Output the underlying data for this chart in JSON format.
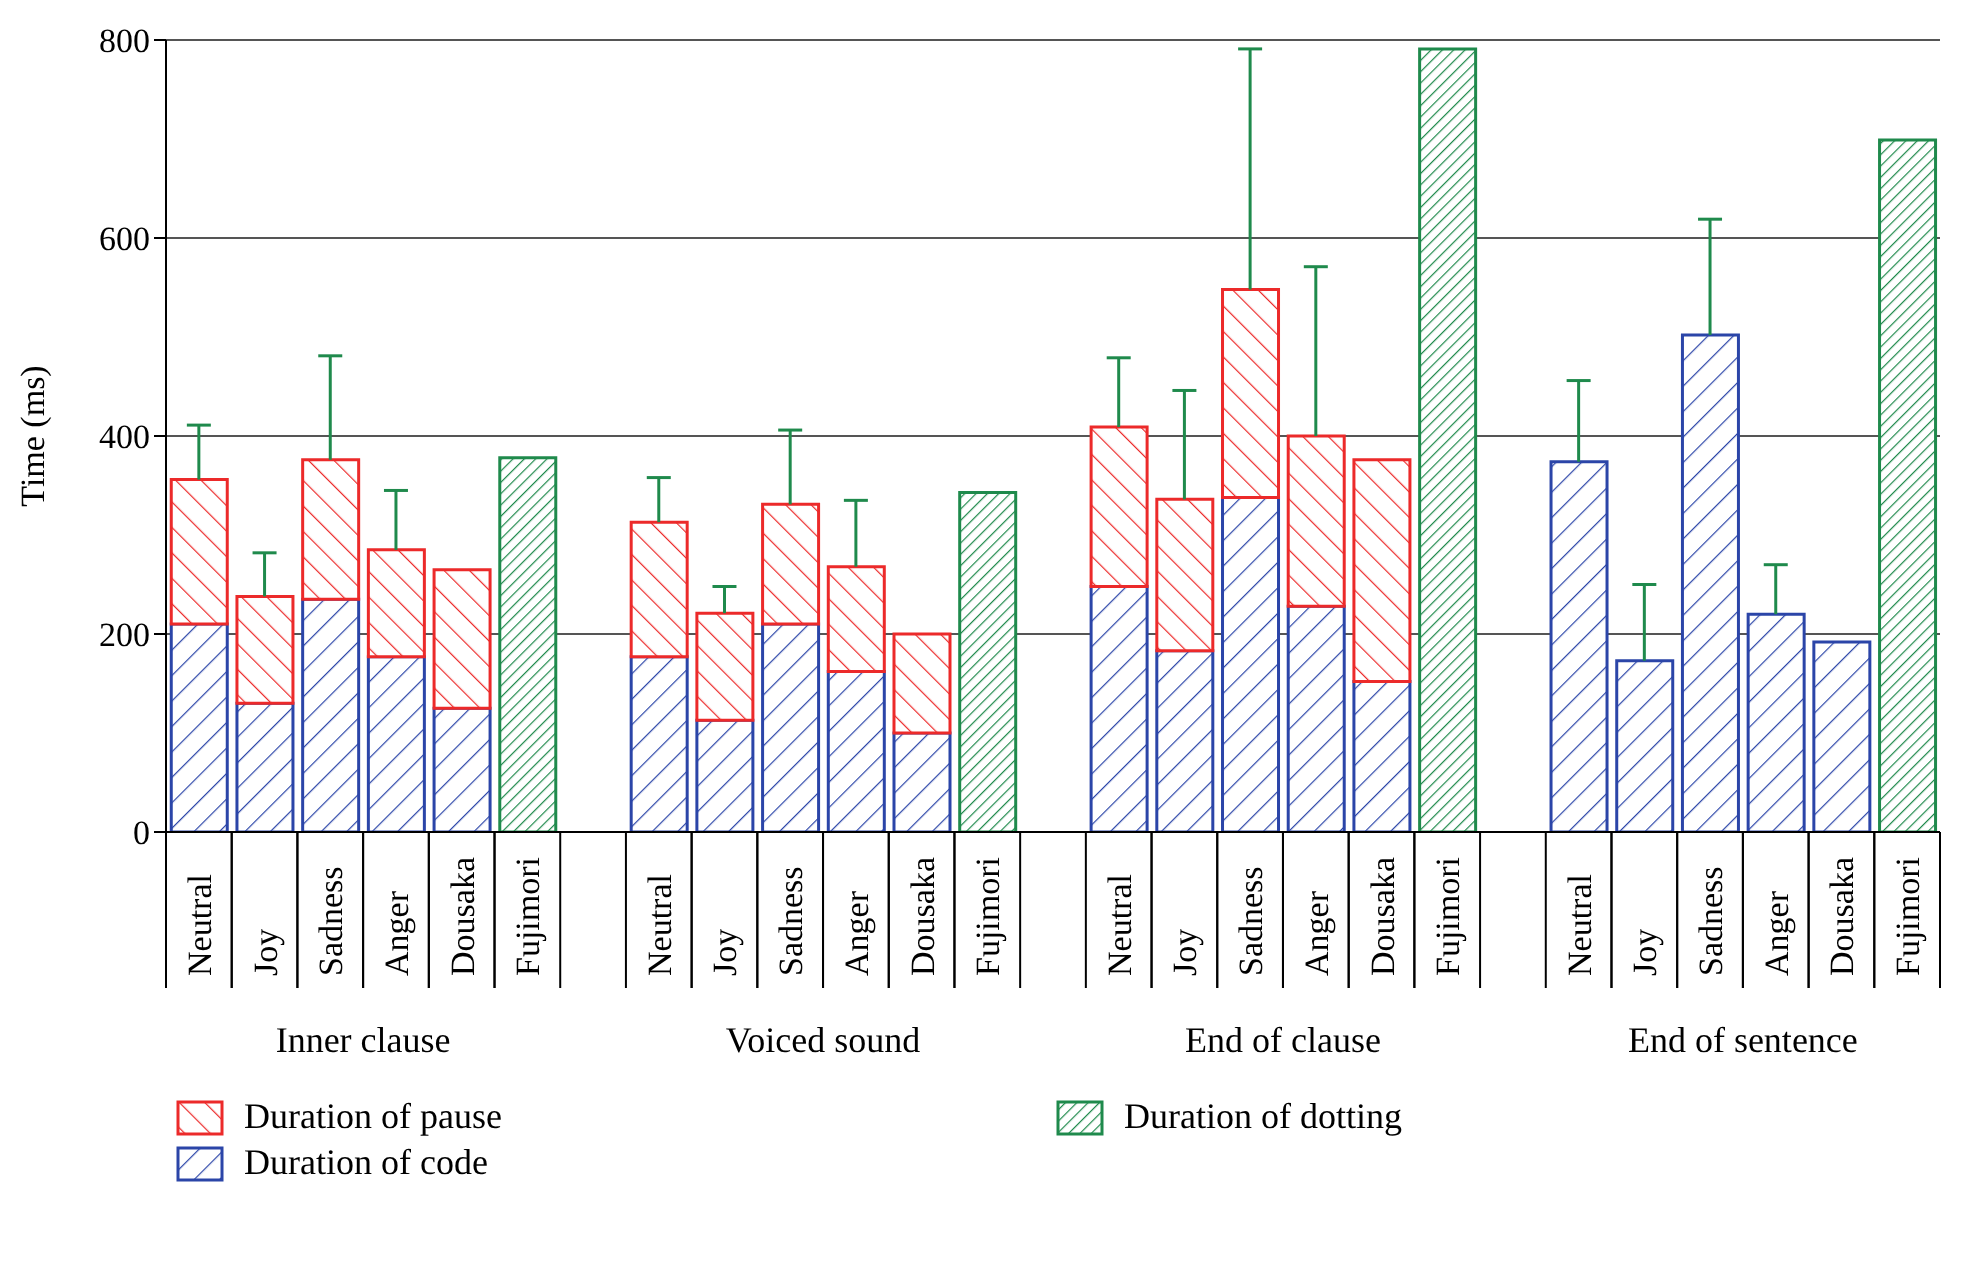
{
  "chart_data": {
    "type": "bar",
    "stacked": true,
    "categories": [
      "Neutral",
      "Joy",
      "Sadness",
      "Anger",
      "Dousaka",
      "Fujimori",
      null,
      "Neutral",
      "Joy",
      "Sadness",
      "Anger",
      "Dousaka",
      "Fujimori",
      null,
      "Neutral",
      "Joy",
      "Sadness",
      "Anger",
      "Dousaka",
      "Fujimori",
      null,
      "Neutral",
      "Joy",
      "Sadness",
      "Anger",
      "Dousaka",
      "Fujimori"
    ],
    "series": [
      {
        "name": "Duration of code",
        "color": "#2b45a8",
        "values": [
          210,
          130,
          235,
          177,
          125,
          null,
          null,
          177,
          113,
          210,
          162,
          100,
          null,
          null,
          248,
          183,
          338,
          228,
          152,
          null,
          null,
          374,
          173,
          502,
          220,
          192,
          null
        ],
        "errors": [
          null,
          null,
          null,
          null,
          null,
          null,
          null,
          null,
          null,
          null,
          null,
          null,
          null,
          null,
          null,
          null,
          null,
          null,
          null,
          null,
          null,
          [
            374,
            456
          ],
          [
            173,
            250
          ],
          [
            502,
            619
          ],
          [
            220,
            270
          ],
          null,
          null
        ]
      },
      {
        "name": "Duration of pause",
        "color": "#ec2a2a",
        "values": [
          146,
          108,
          141,
          108,
          140,
          null,
          null,
          136,
          108,
          121,
          106,
          100,
          null,
          null,
          161,
          153,
          210,
          172,
          224,
          null,
          null,
          null,
          null,
          null,
          null,
          null,
          null
        ],
        "errors": [
          [
            356,
            411
          ],
          [
            238,
            282
          ],
          [
            376,
            481
          ],
          [
            285,
            345
          ],
          null,
          null,
          null,
          [
            313,
            358
          ],
          [
            221,
            248
          ],
          [
            331,
            406
          ],
          [
            268,
            335
          ],
          null,
          null,
          null,
          [
            409,
            479
          ],
          [
            336,
            446
          ],
          [
            548,
            791
          ],
          [
            400,
            571
          ],
          null,
          null,
          null,
          null,
          null,
          null,
          null,
          null,
          null
        ]
      },
      {
        "name": "Duration of dotting",
        "color": "#1f8a4c",
        "values": [
          null,
          null,
          null,
          null,
          null,
          378,
          null,
          null,
          null,
          null,
          null,
          null,
          343,
          null,
          null,
          null,
          null,
          null,
          null,
          791,
          null,
          null,
          null,
          null,
          null,
          null,
          699
        ]
      }
    ],
    "ylabel": "Time (ms)",
    "ylim": [
      0,
      800
    ],
    "yticks": [
      0,
      200,
      400,
      600,
      800
    ],
    "grid": "y",
    "legend": "bottom",
    "annotations": [
      "Inner clause",
      "Voiced sound",
      "End of clause",
      "End of sentence"
    ]
  }
}
